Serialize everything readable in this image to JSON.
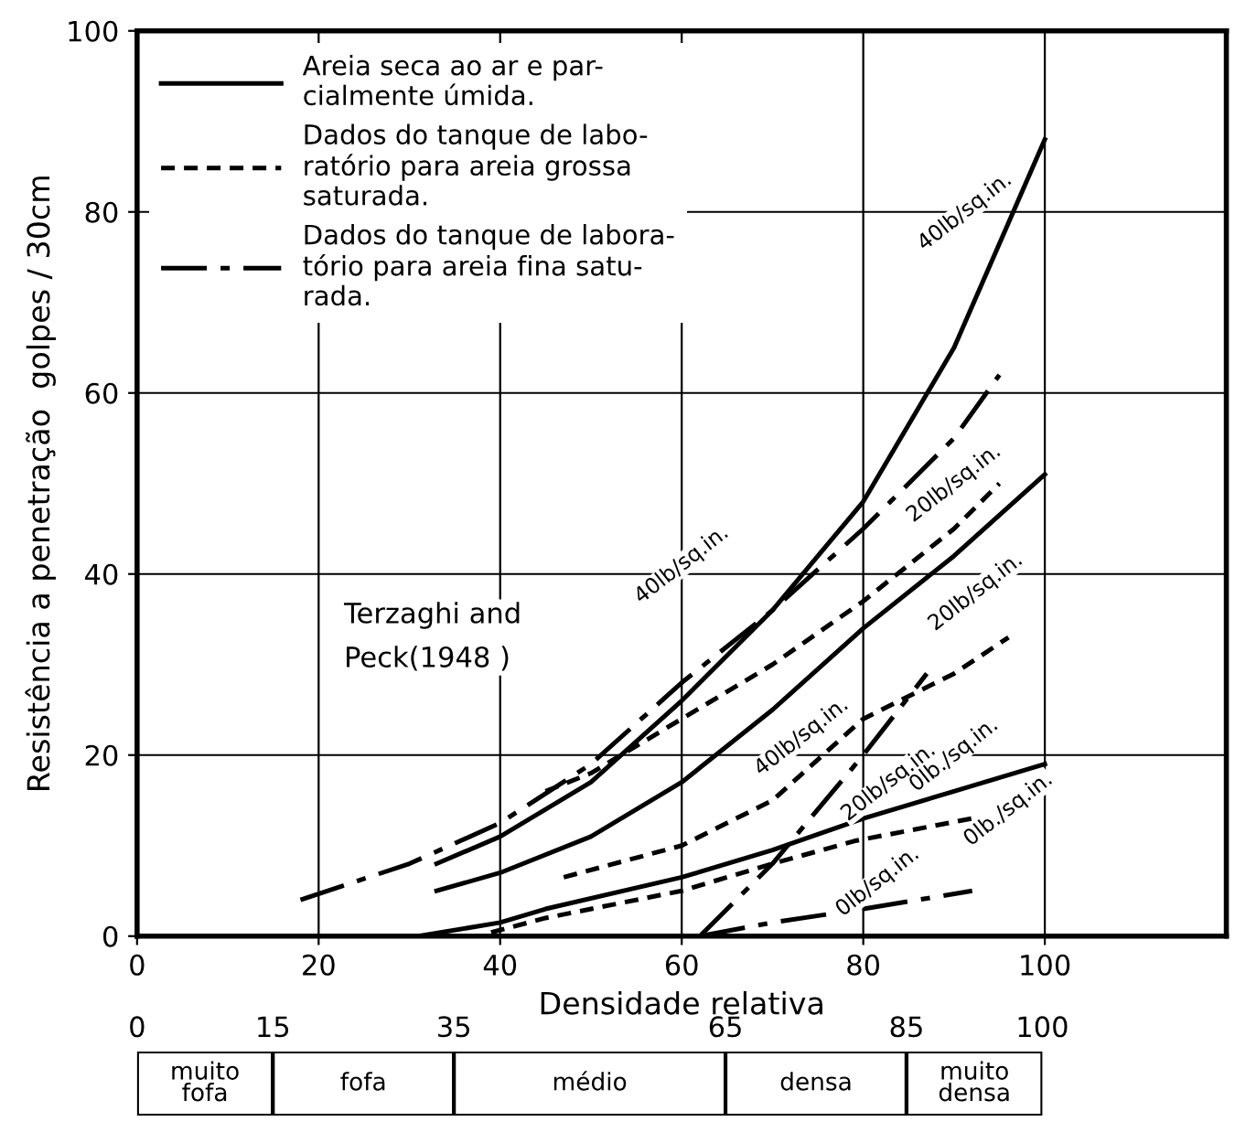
{
  "chart_data": [
    {
      "type": "line",
      "xlabel": "Densidade relativa",
      "ylabel": "Resistência a penetração  golpes / 30cm",
      "xlim": [
        0,
        120
      ],
      "xticks": [
        0,
        20,
        40,
        60,
        80,
        100
      ],
      "ylim": [
        0,
        100
      ],
      "yticks": [
        0,
        20,
        40,
        60,
        80,
        100
      ],
      "grid": true,
      "legend": "top left",
      "series": [
        {
          "name": "Areia seca ao ar e par-\ncialmente úmida.",
          "color": "#000000",
          "line_style": "solid",
          "x": [
            33,
            40,
            50,
            60,
            70,
            80,
            90,
            100
          ],
          "values": [
            8,
            11,
            17,
            26,
            36,
            48,
            65,
            88
          ]
        },
        {
          "color": "#000000",
          "line_style": "solid",
          "x": [
            33,
            40,
            50,
            60,
            70,
            80,
            90,
            100
          ],
          "values": [
            5,
            7,
            11,
            17,
            25,
            34,
            42,
            51
          ]
        },
        {
          "color": "#000000",
          "line_style": "solid",
          "x": [
            31,
            40,
            45,
            60,
            70,
            80,
            90,
            100
          ],
          "values": [
            0,
            1.5,
            3,
            6.5,
            9.5,
            13,
            16,
            19
          ]
        },
        {
          "name": "Dados do tanque de labo-\nratório para areia grossa\nsaturada.",
          "color": "#000000",
          "line_style": "dashed",
          "x": [
            45,
            50,
            60,
            70,
            80,
            90,
            95
          ],
          "values": [
            16,
            18,
            24,
            30,
            37,
            45,
            50
          ]
        },
        {
          "color": "#000000",
          "line_style": "dashed",
          "x": [
            47,
            60,
            70,
            80,
            90,
            96
          ],
          "values": [
            6.5,
            10,
            15,
            24,
            29,
            33
          ]
        },
        {
          "color": "#000000",
          "line_style": "dashed",
          "x": [
            39,
            45,
            60,
            70,
            79,
            92
          ],
          "values": [
            0.4,
            2,
            5,
            8,
            10.5,
            13
          ]
        },
        {
          "name": "Dados do tanque de labora-\ntório para areia fina satu-\nrada.",
          "color": "#000000",
          "line_style": "dashdot",
          "x": [
            18,
            30,
            40,
            50,
            60,
            70,
            80,
            90,
            95
          ],
          "values": [
            4,
            8,
            12.5,
            19,
            28,
            36,
            45,
            55,
            62
          ]
        },
        {
          "color": "#000000",
          "line_style": "dashdot",
          "x": [
            62,
            70,
            80,
            87
          ],
          "values": [
            0,
            8,
            20,
            29
          ]
        },
        {
          "color": "#000000",
          "line_style": "dashdot",
          "x": [
            62,
            70,
            80,
            92
          ],
          "values": [
            0,
            1.5,
            3,
            5
          ]
        }
      ],
      "annotations": [
        "Terzaghi and\nPeck(1948 )",
        "40lb/sq.in.",
        "40lb/sq.in.",
        "20lb/sq.in.",
        "20lb/sq.in.",
        "40lb/sq.in.",
        "20lb/sq.in.",
        "0lb./sq.in.",
        "0lb./sq.in.",
        "0lb/sq.in."
      ]
    },
    {
      "type": "bar",
      "orientation": "horizontal",
      "stacked": true,
      "categories": [
        null
      ],
      "xlim": [
        0,
        100
      ],
      "xticks": [
        0,
        15,
        35,
        65,
        85,
        100
      ],
      "tick_labels": "x",
      "series": [
        {
          "name": "muito\nfofa",
          "color": "#ffffff",
          "values": [
            15
          ]
        },
        {
          "name": "fofa",
          "color": "#ffffff",
          "values": [
            20
          ]
        },
        {
          "name": "médio",
          "color": "#ffffff",
          "values": [
            30
          ]
        },
        {
          "name": "densa",
          "color": "#ffffff",
          "values": [
            20
          ]
        },
        {
          "name": "muito\ndensa",
          "color": "#ffffff",
          "values": [
            15
          ]
        }
      ]
    }
  ]
}
